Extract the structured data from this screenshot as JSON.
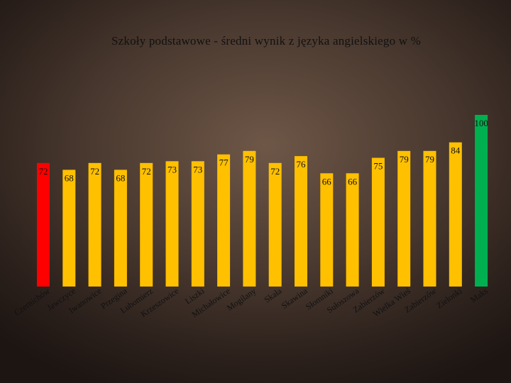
{
  "chart_data": {
    "type": "bar",
    "title": "Szkoły podstawowe - średni wynik z języka angielskiego w %",
    "categories": [
      "Czernichów",
      "Jawczyce",
      "Iwanowice",
      "Przegina",
      "Lubomierz",
      "Krzeszowice",
      "Liszki",
      "Michałowice",
      "Mogilany",
      "Skała",
      "Skawina",
      "Słomniki",
      "Sułoszowa",
      "Zabierzów",
      "Wielka Wieś",
      "Zabierzów",
      "Zielonki",
      "Maks"
    ],
    "values": [
      72,
      68,
      72,
      68,
      72,
      73,
      73,
      77,
      79,
      72,
      76,
      66,
      66,
      75,
      79,
      79,
      84,
      100
    ],
    "colors": [
      "#ff0000",
      "#ffc000",
      "#ffc000",
      "#ffc000",
      "#ffc000",
      "#ffc000",
      "#ffc000",
      "#ffc000",
      "#ffc000",
      "#ffc000",
      "#ffc000",
      "#ffc000",
      "#ffc000",
      "#ffc000",
      "#ffc000",
      "#ffc000",
      "#ffc000",
      "#00b050"
    ],
    "ylim": [
      0,
      100
    ],
    "grid": false,
    "legend": "none"
  }
}
